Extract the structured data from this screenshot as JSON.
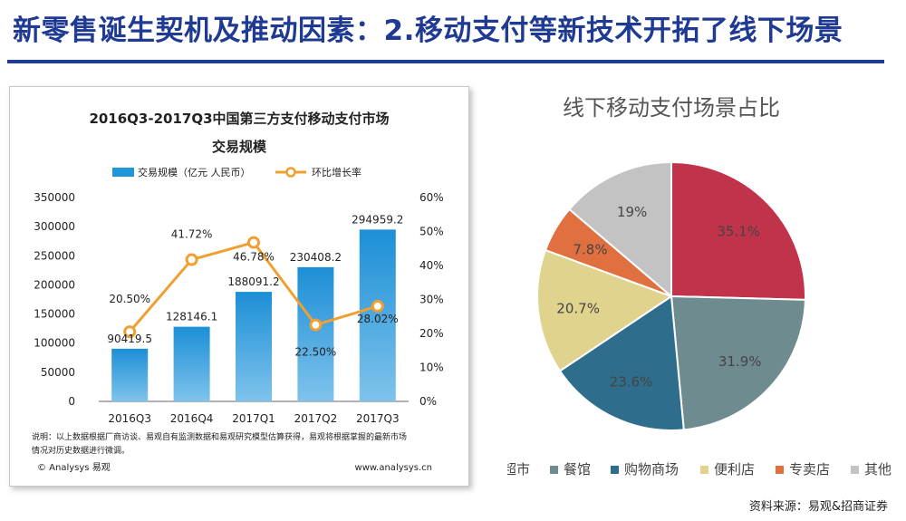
{
  "page": {
    "title": "新零售诞生契机及推动因素：2.移动支付等新技术开拓了线下场景",
    "source": "资料来源：易观&招商证券"
  },
  "chart_data": [
    {
      "type": "bar",
      "title_line1": "2016Q3-2017Q3中国第三方支付移动支付市场",
      "title_line2": "交易规模",
      "categories": [
        "2016Q3",
        "2016Q4",
        "2017Q1",
        "2017Q2",
        "2017Q3"
      ],
      "series": [
        {
          "name": "交易规模（亿元 人民币）",
          "type": "bar",
          "axis": "left",
          "values": [
            90419.5,
            128146.1,
            188091.2,
            230408.2,
            294959.2
          ],
          "labels": [
            "90419.5",
            "128146.1",
            "188091.2",
            "230408.2",
            "294959.2"
          ],
          "color": "#1e96d8"
        },
        {
          "name": "环比增长率",
          "type": "line",
          "axis": "right",
          "values": [
            20.5,
            41.72,
            46.78,
            22.5,
            28.02
          ],
          "labels": [
            "20.50%",
            "41.72%",
            "46.78%",
            "22.50%",
            "28.02%"
          ],
          "color": "#f0a030"
        }
      ],
      "y_left": {
        "ylim": [
          0,
          350000
        ],
        "ticks": [
          "0",
          "50000",
          "100000",
          "150000",
          "200000",
          "250000",
          "300000",
          "350000"
        ]
      },
      "y_right": {
        "ylim": [
          0,
          60
        ],
        "ticks": [
          "0%",
          "10%",
          "20%",
          "30%",
          "40%",
          "50%",
          "60%"
        ]
      },
      "note": "说明：以上数据根据厂商访谈、易观自有监测数据和易观研究模型估算获得，易观将根据掌握的最新市场情况对历史数据进行微调。",
      "brand": "© Analysys 易观",
      "url": "www.analysys.cn"
    },
    {
      "type": "pie",
      "title": "线下移动支付场景占比",
      "slices": [
        {
          "label": "超市",
          "value": 35.1,
          "text": "35.1%",
          "color": "#c0334a"
        },
        {
          "label": "餐馆",
          "value": 31.9,
          "text": "31.9%",
          "color": "#6e8b90"
        },
        {
          "label": "购物商场",
          "value": 23.6,
          "text": "23.6%",
          "color": "#2e6e8c"
        },
        {
          "label": "便利店",
          "value": 20.7,
          "text": "20.7%",
          "color": "#e0d38e"
        },
        {
          "label": "专卖店",
          "value": 7.8,
          "text": "7.8%",
          "color": "#e07040"
        },
        {
          "label": "其他",
          "value": 19,
          "text": "19%",
          "color": "#c3c3c3"
        }
      ],
      "legend_position": "bottom"
    }
  ]
}
